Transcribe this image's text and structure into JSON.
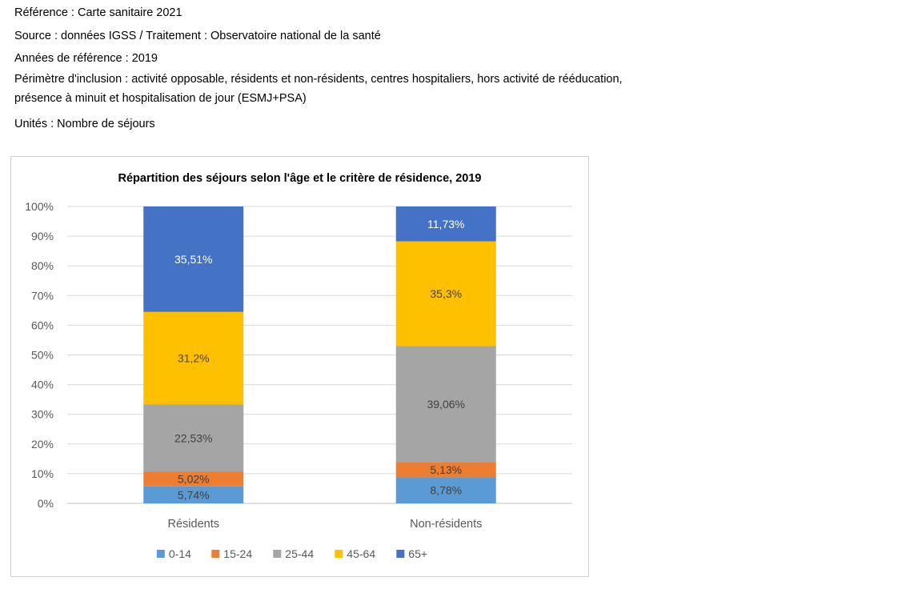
{
  "meta": {
    "reference": "Référence : Carte sanitaire 2021",
    "source": "Source : données IGSS / Traitement : Observatoire national de la santé",
    "years": "Années de référence : 2019",
    "scope_line1": "Périmètre d'inclusion : activité opposable, résidents et non-résidents, centres hospitaliers, hors activité de rééducation,",
    "scope_line2": "présence à minuit et hospitalisation de jour (ESMJ+PSA)",
    "units": "Unités : Nombre de séjours"
  },
  "chart_data": {
    "type": "bar",
    "stacked": "percent",
    "title": "Répartition des séjours selon l'âge et le critère de résidence, 2019",
    "categories": [
      "Résidents",
      "Non-résidents"
    ],
    "y_ticks": [
      "0%",
      "10%",
      "20%",
      "30%",
      "40%",
      "50%",
      "60%",
      "70%",
      "80%",
      "90%",
      "100%"
    ],
    "ylim": [
      0,
      100
    ],
    "grid": true,
    "legend_position": "bottom",
    "series": [
      {
        "name": "0-14",
        "color": "#5B9BD5",
        "values": [
          5.74,
          8.78
        ],
        "labels": [
          "5,74%",
          "8,78%"
        ]
      },
      {
        "name": "15-24",
        "color": "#ED7D31",
        "values": [
          5.02,
          5.13
        ],
        "labels": [
          "5,02%",
          "5,13%"
        ]
      },
      {
        "name": "25-44",
        "color": "#A5A5A5",
        "values": [
          22.53,
          39.06
        ],
        "labels": [
          "22,53%",
          "39,06%"
        ]
      },
      {
        "name": "45-64",
        "color": "#FFC000",
        "values": [
          31.2,
          35.3
        ],
        "labels": [
          "31,2%",
          "35,3%"
        ]
      },
      {
        "name": "65+",
        "color": "#4472C4",
        "values": [
          35.51,
          11.73
        ],
        "labels": [
          "35,51%",
          "11,73%"
        ]
      }
    ]
  }
}
